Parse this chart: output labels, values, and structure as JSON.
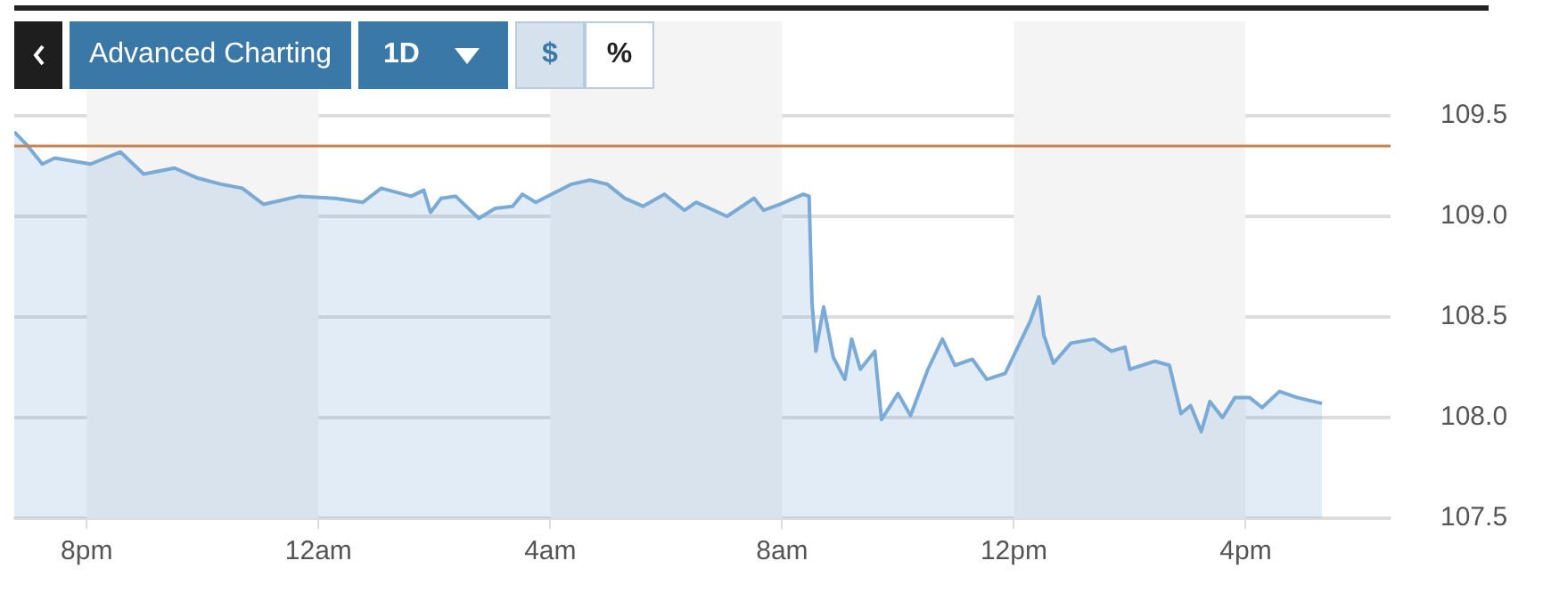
{
  "chart_data": {
    "type": "area",
    "x": [
      "--01-01T18:45",
      "--01-01T18:59",
      "--01-01T19:14",
      "--01-01T19:27",
      "--01-01T20:04",
      "--01-01T20:35",
      "--01-01T20:59",
      "--01-01T21:31",
      "--01-01T21:55",
      "--01-01T22:19",
      "--01-01T22:41",
      "--01-01T23:03",
      "--01-01T23:40",
      "--01-02T00:17",
      "--01-02T00:46",
      "--01-02T01:05",
      "--01-02T01:36",
      "--01-02T01:49",
      "--01-02T01:56",
      "--01-02T02:07",
      "--01-02T02:22",
      "--01-02T02:46",
      "--01-02T03:03",
      "--01-02T03:21",
      "--01-02T03:31",
      "--01-02T03:45",
      "--01-02T04:22",
      "--01-02T04:41",
      "--01-02T04:59",
      "--01-02T05:17",
      "--01-02T05:36",
      "--01-02T05:58",
      "--01-02T06:19",
      "--01-02T06:31",
      "--01-02T07:03",
      "--01-02T07:31",
      "--01-02T07:41",
      "--01-02T07:58",
      "--01-02T08:22",
      "--01-02T08:28",
      "--01-02T08:31",
      "--01-02T08:35",
      "--01-02T08:43",
      "--01-02T08:53",
      "--01-02T09:05",
      "--01-02T09:12",
      "--01-02T09:21",
      "--01-02T09:36",
      "--01-02T09:43",
      "--01-02T10:00",
      "--01-02T10:13",
      "--01-02T10:31",
      "--01-02T10:46",
      "--01-02T10:59",
      "--01-02T11:17",
      "--01-02T11:32",
      "--01-02T11:51",
      "--01-02T12:17",
      "--01-02T12:26",
      "--01-02T12:31",
      "--01-02T12:41",
      "--01-02T12:59",
      "--01-02T13:23",
      "--01-02T13:41",
      "--01-02T13:55",
      "--01-02T14:00",
      "--01-02T14:26",
      "--01-02T14:41",
      "--01-02T14:53",
      "--01-02T15:03",
      "--01-02T15:14",
      "--01-02T15:23",
      "--01-02T15:36",
      "--01-02T15:49",
      "--01-02T16:04",
      "--01-02T16:17",
      "--01-02T16:35",
      "--01-02T16:53",
      "--01-02T17:19"
    ],
    "series": [
      {
        "color": "#7aaad6",
        "values": [
          109.42,
          109.35,
          109.26,
          109.29,
          109.26,
          109.32,
          109.21,
          109.24,
          109.19,
          109.16,
          109.14,
          109.06,
          109.1,
          109.09,
          109.07,
          109.14,
          109.1,
          109.13,
          109.02,
          109.09,
          109.1,
          108.99,
          109.04,
          109.05,
          109.11,
          109.07,
          109.16,
          109.18,
          109.16,
          109.09,
          109.05,
          109.11,
          109.03,
          109.07,
          109.0,
          109.09,
          109.03,
          109.06,
          109.11,
          109.1,
          108.57,
          108.33,
          108.55,
          108.3,
          108.19,
          108.39,
          108.24,
          108.33,
          107.99,
          108.12,
          108.01,
          108.24,
          108.39,
          108.26,
          108.29,
          108.19,
          108.22,
          108.48,
          108.6,
          108.41,
          108.27,
          108.37,
          108.39,
          108.33,
          108.35,
          108.24,
          108.28,
          108.26,
          108.02,
          108.06,
          107.93,
          108.08,
          108.0,
          108.1,
          108.1,
          108.05,
          108.13,
          108.1,
          108.07
        ]
      }
    ],
    "xlim": [
      "--01-01T18:45",
      "--01-02T18:30"
    ],
    "xticks": [
      {
        "value": "--01-01T20:00",
        "label": "8pm"
      },
      {
        "value": "--01-02T00:00",
        "label": "12am"
      },
      {
        "value": "--01-02T04:00",
        "label": "4am"
      },
      {
        "value": "--01-02T08:00",
        "label": "8am"
      },
      {
        "value": "--01-02T12:00",
        "label": "12pm"
      },
      {
        "value": "--01-02T16:00",
        "label": "4pm"
      }
    ],
    "ylim": [
      107.5,
      109.5
    ],
    "yticks": [
      107.5,
      {
        "value": 108,
        "label": "108.0"
      },
      108.5,
      {
        "value": 109,
        "label": "109.0"
      },
      109.5
    ],
    "grid": "y",
    "ref_lines": [
      {
        "axis": "y",
        "value": 109.35,
        "color": "#c8834f"
      }
    ],
    "bands": [
      {
        "axis": "x",
        "from": "--01-01T20:00",
        "to": "--01-02T00:00",
        "color": "#f4f4f4"
      },
      {
        "axis": "x",
        "from": "--01-02T04:00",
        "to": "--01-02T08:00",
        "color": "#f4f4f4"
      },
      {
        "axis": "x",
        "from": "--01-02T12:00",
        "to": "--01-02T16:00",
        "color": "#f4f4f4"
      }
    ],
    "annotations": [
      "Advanced Charting",
      "1D",
      "$",
      "%"
    ]
  }
}
